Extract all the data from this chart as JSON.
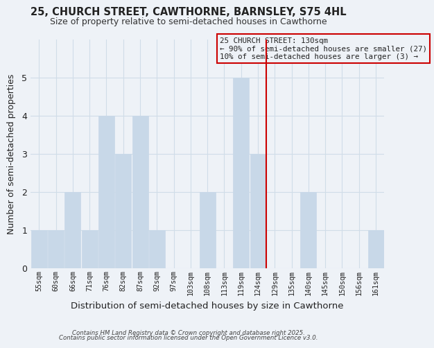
{
  "title": "25, CHURCH STREET, CAWTHORNE, BARNSLEY, S75 4HL",
  "subtitle": "Size of property relative to semi-detached houses in Cawthorne",
  "xlabel": "Distribution of semi-detached houses by size in Cawthorne",
  "ylabel": "Number of semi-detached properties",
  "categories": [
    "55sqm",
    "60sqm",
    "66sqm",
    "71sqm",
    "76sqm",
    "82sqm",
    "87sqm",
    "92sqm",
    "97sqm",
    "103sqm",
    "108sqm",
    "113sqm",
    "119sqm",
    "124sqm",
    "129sqm",
    "135sqm",
    "140sqm",
    "145sqm",
    "150sqm",
    "156sqm",
    "161sqm"
  ],
  "values": [
    1,
    1,
    2,
    1,
    4,
    3,
    4,
    1,
    0,
    0,
    2,
    0,
    5,
    3,
    0,
    0,
    2,
    0,
    0,
    0,
    1
  ],
  "bar_color": "#c8d8e8",
  "bar_edge_color": "#c8d8e8",
  "grid_color": "#d0dde8",
  "background_color": "#eef2f7",
  "vline_x_index": 14,
  "vline_color": "#cc0000",
  "annotation_title": "25 CHURCH STREET: 130sqm",
  "annotation_line1": "← 90% of semi-detached houses are smaller (27)",
  "annotation_line2": "10% of semi-detached houses are larger (3) →",
  "annotation_box_edge": "#cc0000",
  "annotation_box_bg": "#eef2f7",
  "ylim": [
    0,
    6
  ],
  "yticks": [
    0,
    1,
    2,
    3,
    4,
    5,
    6
  ],
  "footer1": "Contains HM Land Registry data © Crown copyright and database right 2025.",
  "footer2": "Contains public sector information licensed under the Open Government Licence v3.0."
}
